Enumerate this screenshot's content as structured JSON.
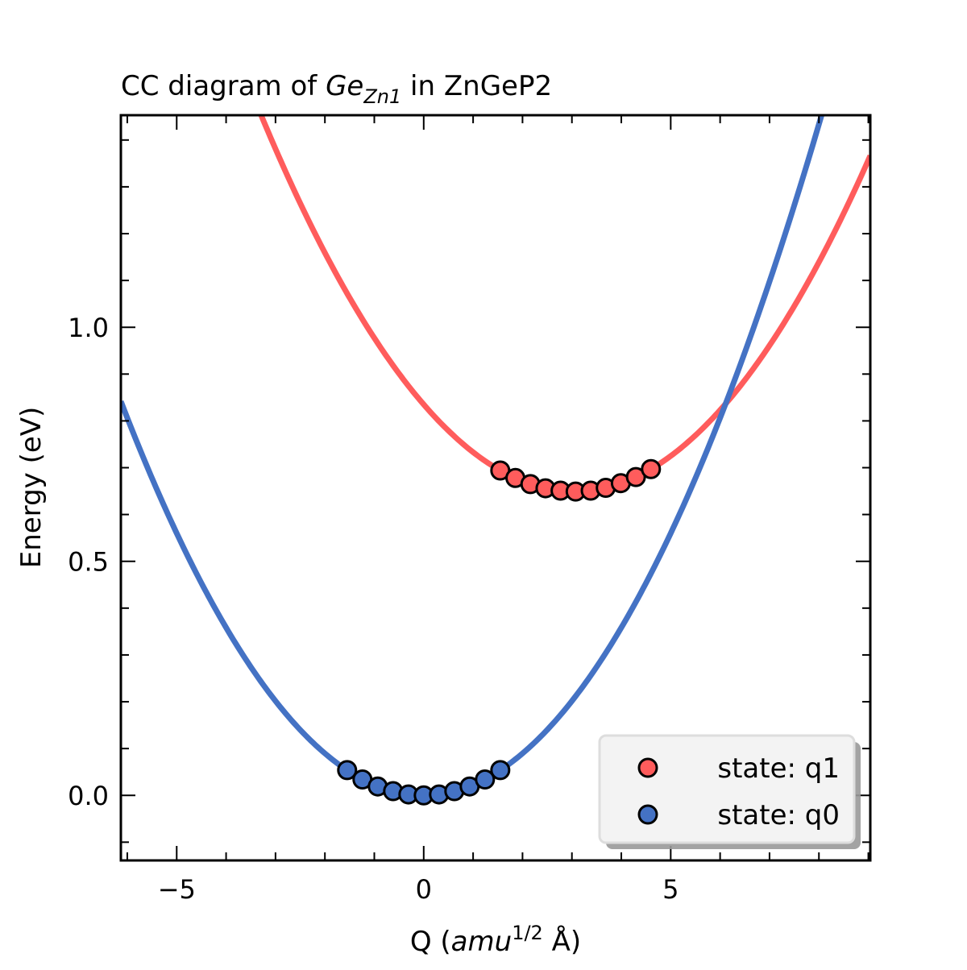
{
  "chart_data": {
    "type": "line",
    "title": "CC diagram of ",
    "title_sub_italic": "Ge",
    "title_subscript": "Zn1",
    "title_suffix": " in ZnGeP2",
    "xlabel": "Q (",
    "xlabel_italic": "amu",
    "xlabel_sup": "1/2",
    "xlabel_suffix": " Å)",
    "ylabel": "Energy (eV)",
    "xlim": [
      -6.13,
      9.04
    ],
    "ylim": [
      -0.139,
      1.453
    ],
    "xticks": [
      -5,
      0,
      5
    ],
    "xtick_labels": [
      "−5",
      "0",
      "5"
    ],
    "yticks": [
      0.0,
      0.5,
      1.0
    ],
    "ytick_labels": [
      "0.0",
      "0.5",
      "1.0"
    ],
    "grid": false,
    "legend_position": "bottom-right",
    "series": [
      {
        "name": "state: q1",
        "color": "#ff5c5c",
        "fit": {
          "curvature": 0.02,
          "q_min": 3.05,
          "e_min": 0.649
        },
        "x": [
          1.55,
          1.855,
          2.16,
          2.465,
          2.77,
          3.075,
          3.38,
          3.685,
          3.99,
          4.295,
          4.6
        ],
        "y": [
          0.694,
          0.678,
          0.665,
          0.656,
          0.651,
          0.649,
          0.651,
          0.657,
          0.667,
          0.68,
          0.697
        ]
      },
      {
        "name": "state: q0",
        "color": "#4472c4",
        "fit": {
          "curvature": 0.0224,
          "q_min": 0,
          "e_min": 0
        },
        "x": [
          -1.55,
          -1.24,
          -0.93,
          -0.62,
          -0.31,
          0,
          0.31,
          0.62,
          0.93,
          1.24,
          1.55
        ],
        "y": [
          0.054,
          0.034,
          0.019,
          0.009,
          0.002,
          0,
          0.002,
          0.009,
          0.019,
          0.034,
          0.054
        ]
      }
    ]
  }
}
